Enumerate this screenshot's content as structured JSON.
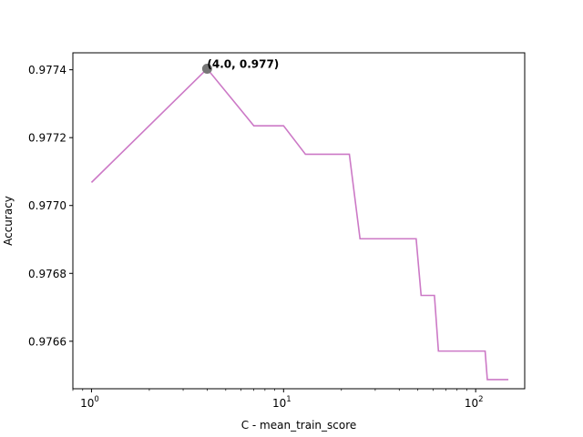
{
  "chart_data": {
    "type": "line",
    "title": "",
    "xlabel": "C - mean_train_score",
    "ylabel": "Accuracy",
    "xscale": "log",
    "xlim": [
      0.8,
      180
    ],
    "ylim": [
      0.97646,
      0.97745
    ],
    "grid": false,
    "xticks": [
      {
        "value": 1,
        "base": "10",
        "exp": "0"
      },
      {
        "value": 10,
        "base": "10",
        "exp": "1"
      },
      {
        "value": 100,
        "base": "10",
        "exp": "2"
      }
    ],
    "yticks": [
      {
        "value": 0.9766,
        "label": "0.9766"
      },
      {
        "value": 0.9768,
        "label": "0.9768"
      },
      {
        "value": 0.977,
        "label": "0.9770"
      },
      {
        "value": 0.9772,
        "label": "0.9772"
      },
      {
        "value": 0.9774,
        "label": "0.9774"
      }
    ],
    "series": [
      {
        "color": "#cc79c6",
        "x": [
          1,
          4,
          7,
          10,
          13,
          22,
          25,
          49,
          52,
          61,
          64,
          112,
          115,
          148
        ],
        "y": [
          0.977068,
          0.977403,
          0.977235,
          0.977235,
          0.977151,
          0.977151,
          0.976902,
          0.976902,
          0.976735,
          0.976735,
          0.976571,
          0.976571,
          0.976487,
          0.976487
        ]
      }
    ],
    "highlight": {
      "x": 4,
      "y": 0.977403,
      "label": "(4.0, 0.977)",
      "color": "#777777"
    }
  }
}
